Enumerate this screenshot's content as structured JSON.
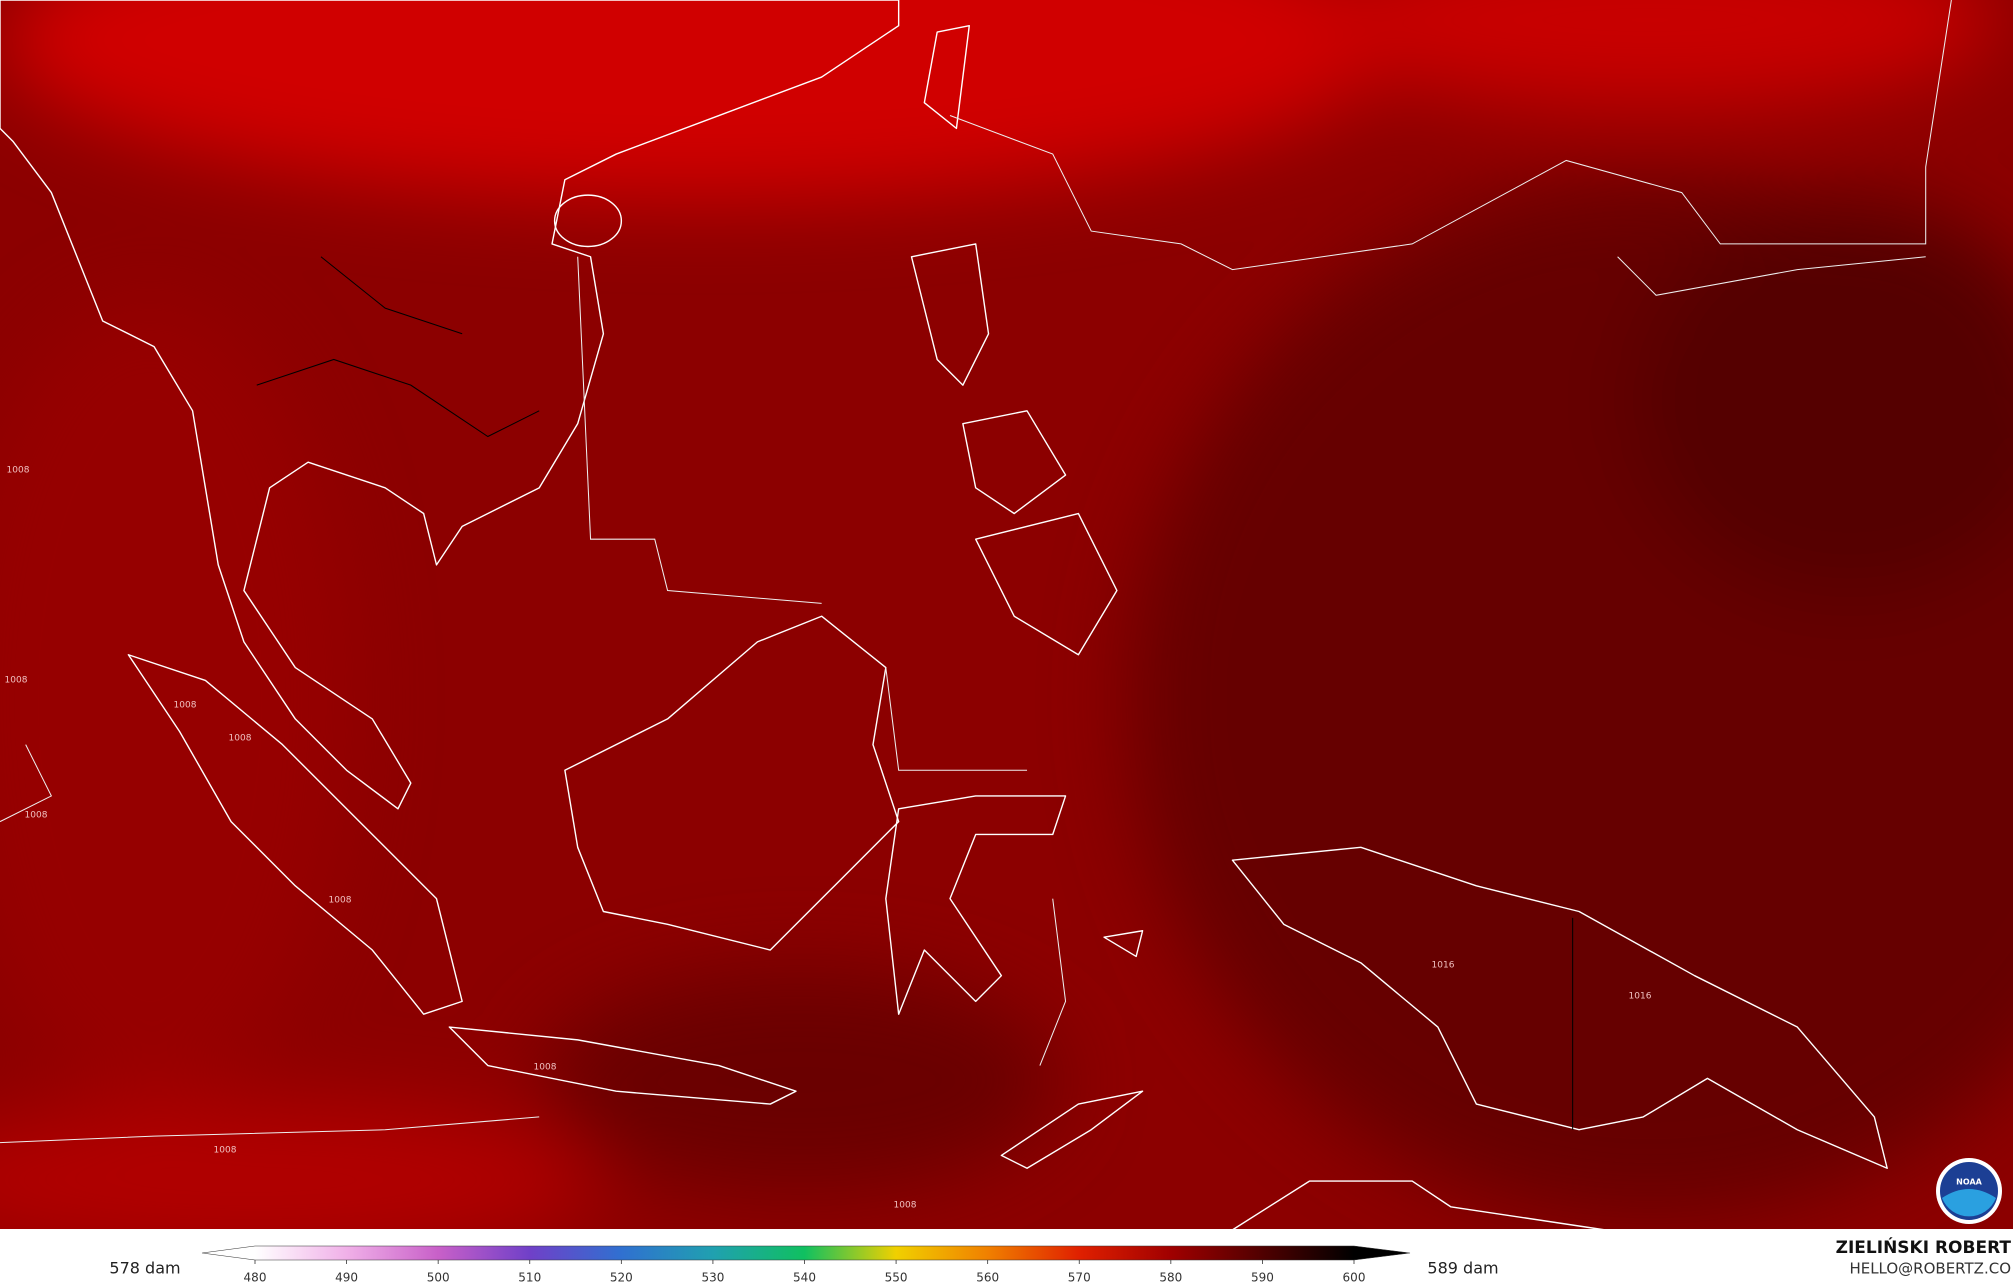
{
  "legend": {
    "left_label": "578 dam",
    "right_label": "589 dam",
    "ticks": [
      480,
      490,
      500,
      510,
      520,
      530,
      540,
      550,
      560,
      570,
      580,
      590,
      600
    ],
    "colors": [
      "#ffffff",
      "#f0b0e8",
      "#c860c8",
      "#7040c8",
      "#3070d0",
      "#20a0b0",
      "#10c060",
      "#f0d000",
      "#f08000",
      "#e02000",
      "#a00000",
      "#500000",
      "#000000"
    ]
  },
  "credit": {
    "author": "ZIELIŃSKI ROBERT",
    "contact": "HELLO@ROBERTZ.CO"
  },
  "logo": {
    "text": "NOAA"
  },
  "contour_labels": [
    "1008",
    "1008",
    "1008",
    "1008",
    "1008",
    "1008",
    "1008",
    "1008",
    "1008",
    "1016",
    "1016"
  ]
}
